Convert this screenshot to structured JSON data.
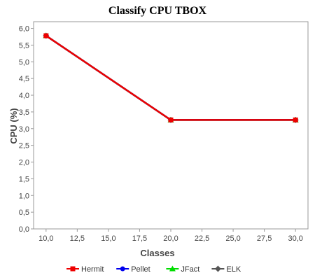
{
  "chart_data": {
    "type": "line",
    "title": "Classify CPU TBOX",
    "xlabel": "Classes",
    "ylabel": "CPU (%)",
    "xlim": [
      9.0,
      31.0
    ],
    "ylim": [
      0.0,
      6.2
    ],
    "x_ticks": [
      10.0,
      12.5,
      15.0,
      17.5,
      20.0,
      22.5,
      25.0,
      27.5,
      30.0
    ],
    "x_tick_labels": [
      "10,0",
      "12,5",
      "15,0",
      "17,5",
      "20,0",
      "22,5",
      "25,0",
      "27,5",
      "30,0"
    ],
    "y_ticks": [
      0.0,
      0.5,
      1.0,
      1.5,
      2.0,
      2.5,
      3.0,
      3.5,
      4.0,
      4.5,
      5.0,
      5.5,
      6.0
    ],
    "y_tick_labels": [
      "0,0",
      "0,5",
      "1,0",
      "1,5",
      "2,0",
      "2,5",
      "3,0",
      "3,5",
      "4,0",
      "4,5",
      "5,0",
      "5,5",
      "6,0"
    ],
    "grid": false,
    "legend_position": "bottom",
    "series": [
      {
        "name": "Hermit",
        "color": "#ee0000",
        "marker": "square",
        "x": [
          10.0,
          20.0,
          30.0
        ],
        "y": [
          5.78,
          3.26,
          3.26
        ]
      },
      {
        "name": "Pellet",
        "color": "#0000ee",
        "marker": "circle",
        "x": [
          10.0,
          20.0,
          30.0
        ],
        "y": [
          5.78,
          3.26,
          3.26
        ]
      },
      {
        "name": "JFact",
        "color": "#00dd00",
        "marker": "triangle",
        "x": [
          10.0,
          20.0,
          30.0
        ],
        "y": [
          5.78,
          3.26,
          3.26
        ]
      },
      {
        "name": "ELK",
        "color": "#555555",
        "marker": "diamond",
        "x": [
          10.0,
          20.0,
          30.0
        ],
        "y": [
          5.78,
          3.26,
          3.26
        ]
      }
    ]
  }
}
